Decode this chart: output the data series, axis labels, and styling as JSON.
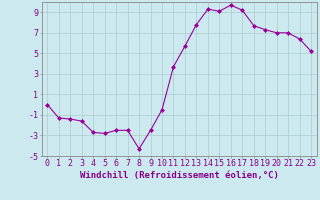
{
  "x": [
    0,
    1,
    2,
    3,
    4,
    5,
    6,
    7,
    8,
    9,
    10,
    11,
    12,
    13,
    14,
    15,
    16,
    17,
    18,
    19,
    20,
    21,
    22,
    23
  ],
  "y": [
    0.0,
    -1.3,
    -1.4,
    -1.6,
    -2.7,
    -2.8,
    -2.5,
    -2.5,
    -4.3,
    -2.5,
    -0.5,
    3.7,
    5.7,
    7.8,
    9.3,
    9.1,
    9.7,
    9.2,
    7.7,
    7.3,
    7.0,
    7.0,
    6.4,
    5.2
  ],
  "line_color": "#990099",
  "marker": "D",
  "marker_size": 2,
  "bg_color": "#cce9f0",
  "grid_color": "#aacccc",
  "ylim": [
    -5,
    10
  ],
  "xlim": [
    -0.5,
    23.5
  ],
  "yticks": [
    -5,
    -3,
    -1,
    1,
    3,
    5,
    7,
    9
  ],
  "xtick_labels": [
    "0",
    "1",
    "2",
    "3",
    "4",
    "5",
    "6",
    "7",
    "8",
    "9",
    "10",
    "11",
    "12",
    "13",
    "14",
    "15",
    "16",
    "17",
    "18",
    "19",
    "20",
    "21",
    "22",
    "23"
  ],
  "font_color": "#880088",
  "tick_fontsize": 6.0,
  "xlabel": "Windchill (Refroidissement éolien,°C)",
  "xlabel_fontsize": 6.5,
  "xlabel_fontweight": "bold"
}
